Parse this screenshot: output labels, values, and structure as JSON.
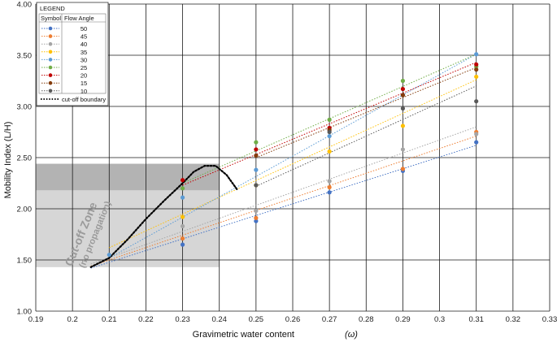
{
  "chart_data": {
    "type": "scatter",
    "xlabel": "Gravimetric water content",
    "xlabel_symbol": "(ω)",
    "ylabel": "Mobility Index (L/H)",
    "xlim": [
      0.19,
      0.33
    ],
    "ylim": [
      1.0,
      4.0
    ],
    "x_ticks": [
      "0.19",
      "0.2",
      "0.21",
      "0.22",
      "0.23",
      "0.24",
      "0.25",
      "0.26",
      "0.27",
      "0.28",
      "0.29",
      "0.3",
      "0.31",
      "0.32",
      "0.33"
    ],
    "y_ticks": [
      "1.00",
      "1.50",
      "2.00",
      "2.50",
      "3.00",
      "3.50",
      "4.00"
    ],
    "grid": true,
    "legend": {
      "title": "LEGEND",
      "header_symbol": "Symbol",
      "header_angle": "Flow Angle",
      "placement": "top-left",
      "boundary_label": "cut-off boundary"
    },
    "series": [
      {
        "name": "50",
        "color": "#4472c4",
        "x": [
          0.23,
          0.25,
          0.27,
          0.29,
          0.31
        ],
        "y": [
          1.65,
          1.88,
          2.16,
          2.37,
          2.65
        ],
        "trend": [
          [
            0.205,
            1.42
          ],
          [
            0.31,
            2.62
          ]
        ]
      },
      {
        "name": "45",
        "color": "#ed7d31",
        "x": [
          0.23,
          0.25,
          0.27,
          0.29,
          0.31
        ],
        "y": [
          1.71,
          1.91,
          2.21,
          2.39,
          2.75
        ],
        "trend": [
          [
            0.205,
            1.44
          ],
          [
            0.31,
            2.71
          ]
        ]
      },
      {
        "name": "40",
        "color": "#a5a5a5",
        "x": [
          0.23,
          0.25,
          0.27,
          0.29,
          0.31
        ],
        "y": [
          1.83,
          1.98,
          2.27,
          2.58,
          2.73
        ],
        "trend": [
          [
            0.205,
            1.46
          ],
          [
            0.31,
            2.8
          ]
        ]
      },
      {
        "name": "35",
        "color": "#ffc000",
        "x": [
          0.23,
          0.25,
          0.27,
          0.29,
          0.31
        ],
        "y": [
          1.92,
          2.23,
          2.56,
          2.81,
          3.29
        ],
        "trend": [
          [
            0.21,
            1.62
          ],
          [
            0.31,
            3.26
          ]
        ]
      },
      {
        "name": "30",
        "color": "#5b9bd5",
        "x": [
          0.21,
          0.23,
          0.25,
          0.27,
          0.29,
          0.31
        ],
        "y": [
          1.55,
          2.11,
          2.38,
          2.71,
          3.11,
          3.51
        ],
        "trend": [
          [
            0.21,
            1.52
          ],
          [
            0.31,
            3.51
          ]
        ]
      },
      {
        "name": "25",
        "color": "#70ad47",
        "x": [
          0.23,
          0.25,
          0.27,
          0.29,
          0.31
        ],
        "y": [
          2.2,
          2.65,
          2.87,
          3.25,
          3.39
        ],
        "trend": [
          [
            0.23,
            2.25
          ],
          [
            0.31,
            3.51
          ]
        ]
      },
      {
        "name": "20",
        "color": "#c00000",
        "x": [
          0.23,
          0.25,
          0.27,
          0.29,
          0.31
        ],
        "y": [
          2.28,
          2.58,
          2.79,
          3.17,
          3.41
        ],
        "trend": [
          [
            0.23,
            2.23
          ],
          [
            0.31,
            3.43
          ]
        ]
      },
      {
        "name": "15",
        "color": "#843c0c",
        "x": [
          0.25,
          0.27,
          0.29,
          0.31
        ],
        "y": [
          2.52,
          2.77,
          3.11,
          3.36
        ],
        "trend": [
          [
            0.25,
            2.5
          ],
          [
            0.31,
            3.38
          ]
        ]
      },
      {
        "name": "10",
        "color": "#595959",
        "x": [
          0.25,
          0.27,
          0.29,
          0.31
        ],
        "y": [
          2.23,
          2.75,
          2.98,
          3.05
        ],
        "trend": [
          [
            0.25,
            2.22
          ],
          [
            0.31,
            3.2
          ]
        ]
      }
    ],
    "cutoff_boundary": {
      "x": [
        0.205,
        0.21,
        0.215,
        0.22,
        0.225,
        0.23,
        0.233,
        0.236,
        0.239,
        0.242,
        0.245
      ],
      "y": [
        1.43,
        1.52,
        1.7,
        1.9,
        2.08,
        2.25,
        2.36,
        2.42,
        2.42,
        2.33,
        2.18
      ]
    },
    "cutoff_zone": {
      "label_main": "Cut-off Zone",
      "label_sub": "(no propagation)",
      "light_band": {
        "x": [
          0.19,
          0.24
        ],
        "y": [
          1.43,
          2.18
        ]
      },
      "dark_band": {
        "x": [
          0.19,
          0.24
        ],
        "y": [
          2.18,
          2.44
        ]
      }
    }
  }
}
